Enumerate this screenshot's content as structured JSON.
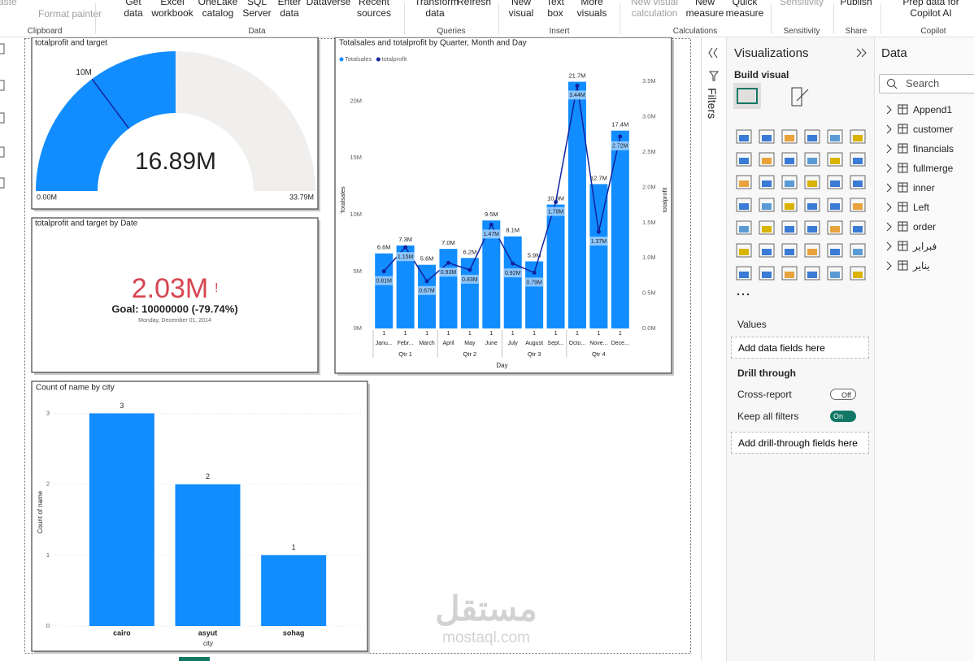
{
  "ribbon": {
    "items": [
      "aste",
      "Format painter",
      "Get data",
      "Excel workbook",
      "OneLake catalog",
      "SQL Server",
      "Enter data",
      "Dataverse",
      "Recent sources",
      "Transform data",
      "Refresh",
      "New visual",
      "Text box",
      "More visuals",
      "New visual calculation",
      "New measure",
      "Quick measure",
      "Sensitivity",
      "Publish",
      "Prep data for Copilot AI"
    ],
    "groups": [
      "Clipboard",
      "Data",
      "Queries",
      "Insert",
      "Calculations",
      "Sensitivity",
      "Share",
      "Copilot"
    ]
  },
  "gauge": {
    "type": "gauge",
    "title": "totalprofit and target",
    "value": 16890000,
    "value_label": "16.89M",
    "min": {
      "value": 0,
      "label": "0.00M"
    },
    "max": {
      "value": 33790000,
      "label": "33.79M"
    },
    "target": {
      "value": 10000000,
      "label": "10M"
    },
    "color": "#118dff"
  },
  "kpi": {
    "title": "totalprofit and target by Date",
    "value_label": "2.03M",
    "indicator": "!",
    "goal": "Goal: 10000000 (-79.74%)",
    "date": "Monday, December 01, 2014"
  },
  "combo": {
    "type": "combo",
    "title": "Totalsales and totalprofit by Quarter, Month and Day",
    "categories": [
      "Janu...",
      "Febr...",
      "March",
      "April",
      "May",
      "June",
      "July",
      "August",
      "Sept...",
      "Octo...",
      "Nove...",
      "Dece..."
    ],
    "days": [
      "1",
      "1",
      "1",
      "1",
      "1",
      "1",
      "1",
      "1",
      "1",
      "1",
      "1",
      "1"
    ],
    "quarters": [
      "Qtr 1",
      "Qtr 2",
      "Qtr 3",
      "Qtr 4"
    ],
    "x_title": "Day",
    "y_title": "Totalsales",
    "y2_title": "totalprofit",
    "series": [
      {
        "name": "Totalsales",
        "color": "#118dff",
        "values": [
          6600000,
          7300000,
          5600000,
          7000000,
          6200000,
          9500000,
          8100000,
          5900000,
          10900000,
          21700000,
          12700000,
          17400000
        ],
        "value_labels": [
          "6.6M",
          "7.3M",
          "5.6M",
          "7.0M",
          "6.2M",
          "9.5M",
          "8.1M",
          "5.9M",
          "10.9M",
          "21.7M",
          "12.7M",
          "17.4M"
        ]
      },
      {
        "name": "totalprofit",
        "color": "#12239e",
        "axis": "y2",
        "values": [
          810000,
          1150000,
          670000,
          930000,
          830000,
          1470000,
          920000,
          790000,
          1790000,
          3440000,
          1370000,
          2720000
        ],
        "value_labels": [
          "0.81M",
          "1.15M",
          "0.67M",
          "0.93M",
          "0.83M",
          "1.47M",
          "0.92M",
          "0.79M",
          "1.79M",
          "3.44M",
          "1.37M",
          "2.72M"
        ]
      }
    ],
    "ylim": [
      0,
      22600000
    ],
    "yticks": [
      {
        "value": 0,
        "label": "0M"
      },
      {
        "value": 5000000,
        "label": "5M"
      },
      {
        "value": 10000000,
        "label": "10M"
      },
      {
        "value": 15000000,
        "label": "15M"
      },
      {
        "value": 20000000,
        "label": "20M"
      }
    ],
    "y2lim": [
      0,
      3640000
    ],
    "y2ticks": [
      {
        "value": 0,
        "label": "0.0M"
      },
      {
        "value": 500000,
        "label": "0.5M"
      },
      {
        "value": 1000000,
        "label": "1.0M"
      },
      {
        "value": 1500000,
        "label": "1.5M"
      },
      {
        "value": 2000000,
        "label": "2.0M"
      },
      {
        "value": 2500000,
        "label": "2.5M"
      },
      {
        "value": 3000000,
        "label": "3.0M"
      },
      {
        "value": 3500000,
        "label": "3.5M"
      }
    ]
  },
  "bar_chart": {
    "type": "bar",
    "title": "Count of name by city",
    "categories": [
      "cairo",
      "asyut",
      "sohag"
    ],
    "values": [
      3,
      2,
      1
    ],
    "color": "#118dff",
    "ylim": [
      0,
      3.2
    ],
    "yticks": [
      0,
      1,
      2,
      3
    ],
    "x_title": "city",
    "y_title": "Count of name",
    "grid": true
  },
  "filters": {
    "label": "Filters"
  },
  "visualizations": {
    "title": "Visualizations",
    "build": "Build visual",
    "values": "Values",
    "values_box": "Add data fields here",
    "drill": "Drill through",
    "cross": "Cross-report",
    "cross_state": "Off",
    "keep": "Keep all filters",
    "keep_state": "On",
    "drill_box": "Add drill-through fields here"
  },
  "data_pane": {
    "title": "Data",
    "search": "Search",
    "tables": [
      "Append1",
      "customer",
      "financials",
      "fullmerge",
      "inner",
      "Left",
      "order",
      "فبراير",
      "يناير"
    ]
  },
  "watermark": {
    "arabic": "مستقل",
    "latin": "mostaql.com"
  }
}
